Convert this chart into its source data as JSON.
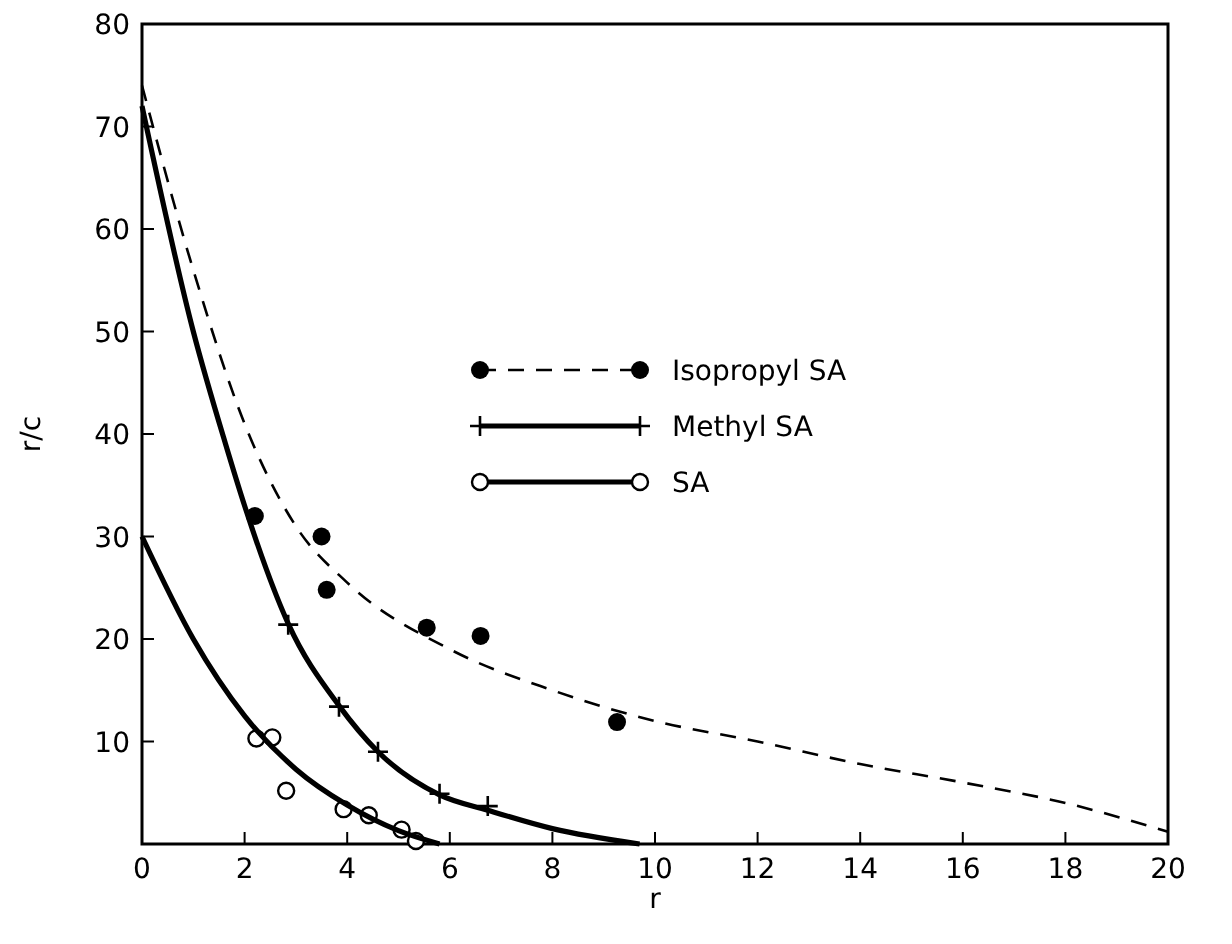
{
  "chart_data": {
    "type": "scatter",
    "xlabel": "r",
    "ylabel": "r/c",
    "xlim": [
      0,
      20
    ],
    "ylim": [
      0,
      80
    ],
    "xticks": [
      0,
      2,
      4,
      6,
      8,
      10,
      12,
      14,
      16,
      18,
      20
    ],
    "yticks": [
      10,
      20,
      30,
      40,
      50,
      60,
      70,
      80
    ],
    "grid": false,
    "legend": "center",
    "series": [
      {
        "name": "Isopropyl SA",
        "color": "#000000",
        "marker": "circle",
        "x": [
          2.2,
          3.5,
          3.6,
          5.55,
          6.6,
          9.26
        ],
        "values": [
          32,
          30,
          24.8,
          21.1,
          20.3,
          11.9
        ]
      },
      {
        "type": "line",
        "color": "#000000",
        "line_style": "dashed",
        "x": [
          0,
          1,
          2,
          3,
          4,
          6,
          8,
          10,
          12,
          14,
          16,
          18,
          20
        ],
        "values": [
          74,
          56,
          41,
          31,
          25.5,
          19,
          15,
          12,
          10,
          7.8,
          6,
          4,
          1.2
        ]
      },
      {
        "name": "Methyl SA",
        "color": "#000000",
        "marker": "cross",
        "x": [
          2.85,
          3.84,
          4.6,
          5.8,
          6.74
        ],
        "values": [
          21.4,
          13.4,
          9,
          4.9,
          3.7
        ]
      },
      {
        "type": "line",
        "color": "#000000",
        "line_style": "solid",
        "x": [
          0,
          1,
          1.63,
          2,
          2.85,
          3.84,
          4.6,
          5.8,
          6.74,
          8,
          9.7
        ],
        "values": [
          72,
          50,
          39,
          33,
          21.5,
          13.5,
          9,
          4.8,
          3.3,
          1.5,
          0
        ]
      },
      {
        "name": "SA",
        "color": "#000000",
        "marker": "circle-open",
        "x": [
          2.23,
          2.54,
          2.81,
          3.93,
          4.42,
          5.06,
          5.34
        ],
        "values": [
          10.3,
          10.4,
          5.2,
          3.4,
          2.8,
          1.4,
          0.3
        ]
      },
      {
        "type": "line",
        "color": "#000000",
        "line_style": "solid",
        "x": [
          0,
          1,
          2,
          3,
          4,
          5,
          5.8
        ],
        "values": [
          30,
          20,
          12.5,
          7.3,
          3.8,
          1.3,
          0
        ]
      }
    ]
  }
}
